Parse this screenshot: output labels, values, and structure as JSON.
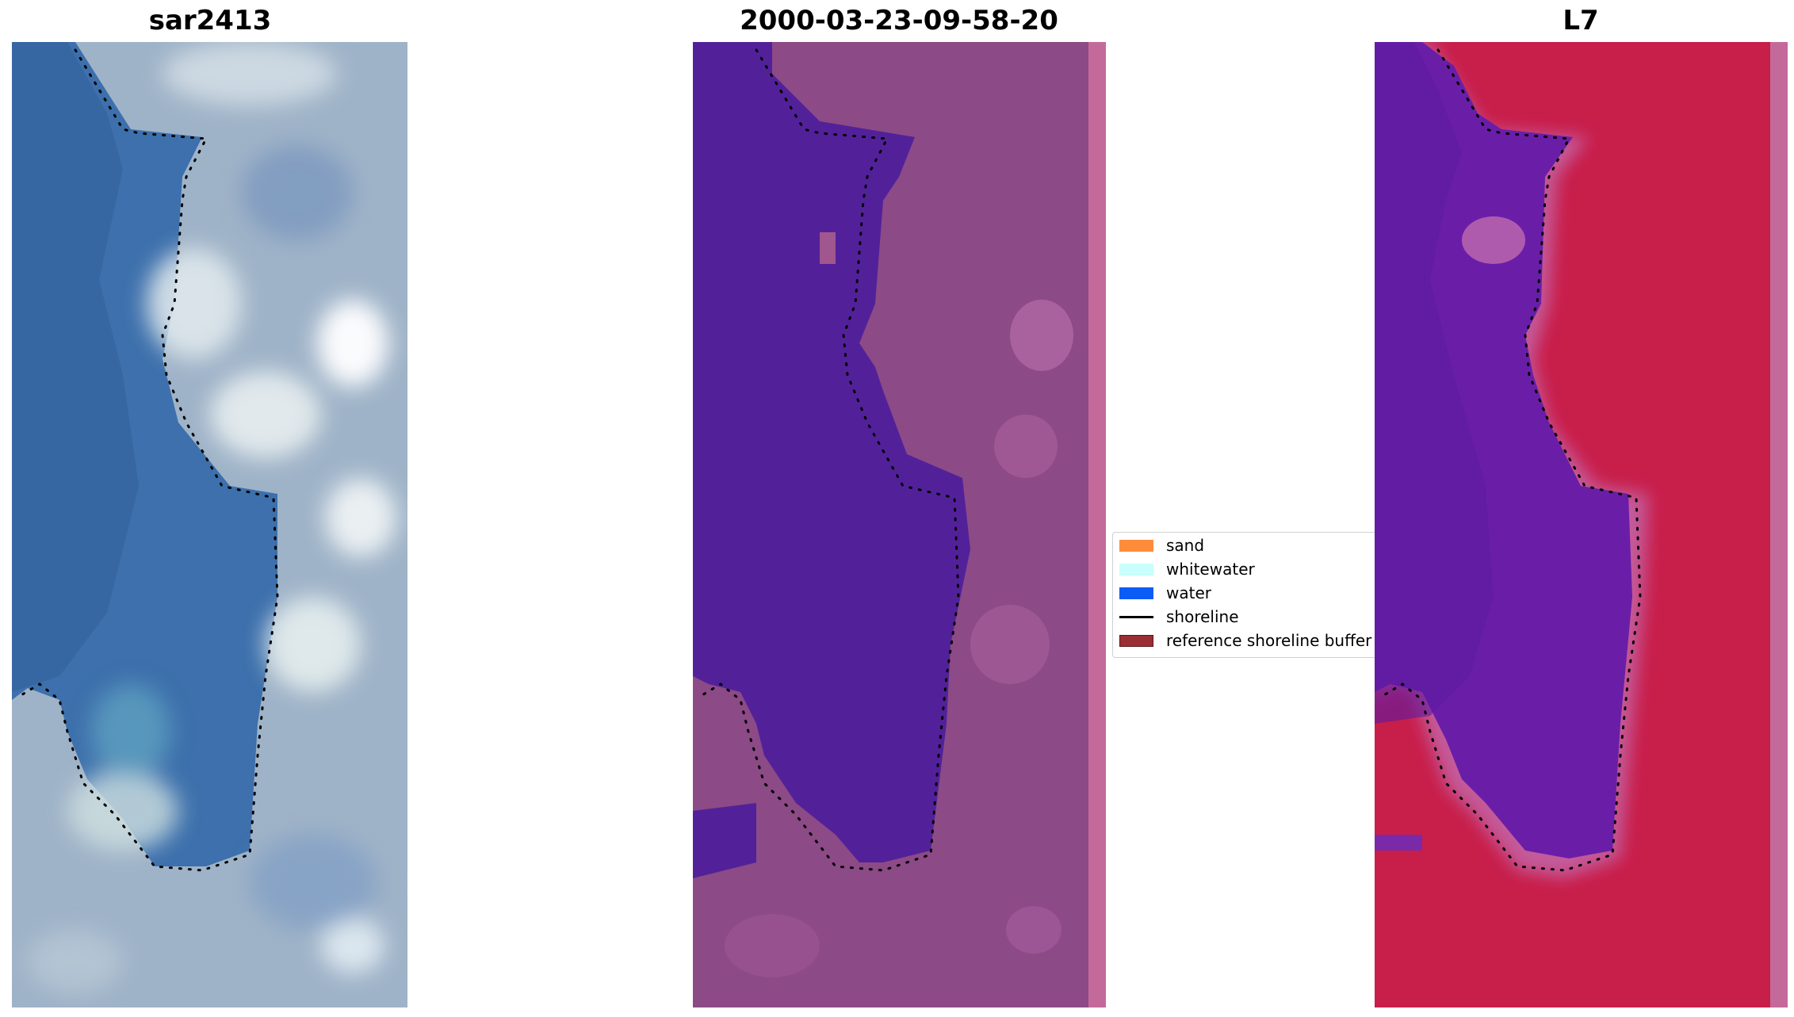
{
  "panels": [
    {
      "title": "sar2413"
    },
    {
      "title": "2000-03-23-09-58-20"
    },
    {
      "title": "L7"
    }
  ],
  "legend": {
    "items": [
      {
        "label": "sand",
        "kind": "patch",
        "color": "#ff8c3a"
      },
      {
        "label": "whitewater",
        "kind": "patch",
        "color": "#c8fffc"
      },
      {
        "label": "water",
        "kind": "patch",
        "color": "#0a5cf5"
      },
      {
        "label": "shoreline",
        "kind": "line",
        "color": "#000000"
      },
      {
        "label": "reference shoreline buffer",
        "kind": "patch",
        "color": "#9b2e35"
      }
    ]
  },
  "colors": {
    "rgb_water": "#3c6ea8",
    "rgb_land": "#a8b8cc",
    "class_water": "#52219a",
    "class_land": "#8e4d88",
    "class_strip": "#c46a9a",
    "l7_water": "#6a1ea8",
    "l7_land": "#c81e4a",
    "l7_strip": "#c46a9a",
    "shoreline_dots": "#000000"
  }
}
